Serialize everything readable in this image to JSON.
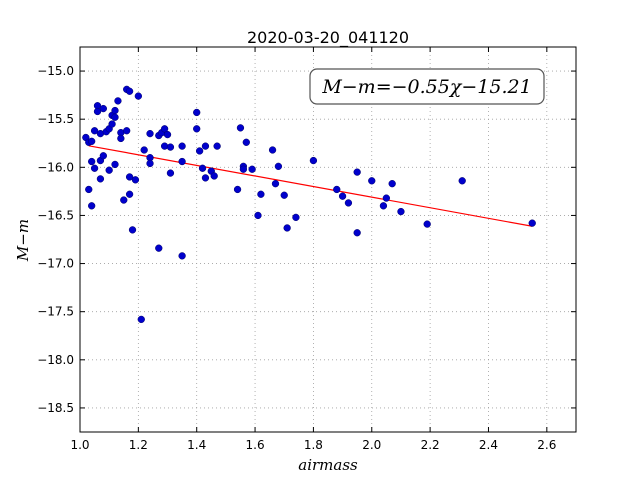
{
  "chart_data": {
    "type": "scatter",
    "title": "2020-03-20_041120",
    "xlabel": "airmass",
    "ylabel": "M−m",
    "xlim": [
      1.0,
      2.7
    ],
    "ylim": [
      -18.75,
      -14.75
    ],
    "y_inverted": true,
    "grid": true,
    "x_ticks": [
      "1.0",
      "1.2",
      "1.4",
      "1.6",
      "1.8",
      "2.0",
      "2.2",
      "2.4",
      "2.6"
    ],
    "y_ticks": [
      "−15.0",
      "−15.5",
      "−16.0",
      "−16.5",
      "−17.0",
      "−17.5",
      "−18.0",
      "−18.5"
    ],
    "annotation": "M−m=−0.55χ−15.21",
    "fit": {
      "slope": -0.55,
      "intercept": -15.21,
      "x_range": [
        1.03,
        2.55
      ],
      "color": "#ff0000"
    },
    "point_color": "#0000cc",
    "points": [
      [
        1.02,
        -15.69
      ],
      [
        1.03,
        -15.74
      ],
      [
        1.04,
        -15.73
      ],
      [
        1.03,
        -16.23
      ],
      [
        1.04,
        -16.4
      ],
      [
        1.05,
        -15.62
      ],
      [
        1.06,
        -15.36
      ],
      [
        1.06,
        -15.42
      ],
      [
        1.07,
        -15.65
      ],
      [
        1.08,
        -15.39
      ],
      [
        1.04,
        -15.94
      ],
      [
        1.05,
        -16.01
      ],
      [
        1.07,
        -15.93
      ],
      [
        1.07,
        -16.12
      ],
      [
        1.08,
        -15.88
      ],
      [
        1.09,
        -15.63
      ],
      [
        1.1,
        -15.6
      ],
      [
        1.1,
        -16.03
      ],
      [
        1.11,
        -15.46
      ],
      [
        1.11,
        -15.55
      ],
      [
        1.12,
        -15.41
      ],
      [
        1.12,
        -15.48
      ],
      [
        1.13,
        -15.31
      ],
      [
        1.12,
        -15.97
      ],
      [
        1.14,
        -15.64
      ],
      [
        1.14,
        -15.7
      ],
      [
        1.15,
        -16.34
      ],
      [
        1.16,
        -15.19
      ],
      [
        1.17,
        -15.21
      ],
      [
        1.16,
        -15.62
      ],
      [
        1.17,
        -16.1
      ],
      [
        1.17,
        -16.28
      ],
      [
        1.18,
        -16.65
      ],
      [
        1.19,
        -16.13
      ],
      [
        1.2,
        -15.26
      ],
      [
        1.21,
        -17.58
      ],
      [
        1.22,
        -15.82
      ],
      [
        1.24,
        -15.65
      ],
      [
        1.24,
        -15.9
      ],
      [
        1.24,
        -15.96
      ],
      [
        1.27,
        -15.67
      ],
      [
        1.28,
        -15.64
      ],
      [
        1.29,
        -15.6
      ],
      [
        1.29,
        -15.78
      ],
      [
        1.27,
        -16.84
      ],
      [
        1.3,
        -15.66
      ],
      [
        1.31,
        -15.79
      ],
      [
        1.31,
        -16.06
      ],
      [
        1.35,
        -15.78
      ],
      [
        1.35,
        -15.94
      ],
      [
        1.35,
        -16.92
      ],
      [
        1.4,
        -15.43
      ],
      [
        1.4,
        -15.6
      ],
      [
        1.41,
        -15.83
      ],
      [
        1.42,
        -16.01
      ],
      [
        1.43,
        -15.78
      ],
      [
        1.43,
        -16.11
      ],
      [
        1.45,
        -16.04
      ],
      [
        1.46,
        -16.09
      ],
      [
        1.47,
        -15.78
      ],
      [
        1.54,
        -16.23
      ],
      [
        1.55,
        -15.59
      ],
      [
        1.56,
        -15.99
      ],
      [
        1.56,
        -16.02
      ],
      [
        1.57,
        -15.74
      ],
      [
        1.59,
        -16.02
      ],
      [
        1.61,
        -16.5
      ],
      [
        1.62,
        -16.28
      ],
      [
        1.66,
        -15.82
      ],
      [
        1.67,
        -16.17
      ],
      [
        1.68,
        -15.99
      ],
      [
        1.7,
        -16.29
      ],
      [
        1.71,
        -16.63
      ],
      [
        1.74,
        -16.52
      ],
      [
        1.8,
        -15.93
      ],
      [
        1.88,
        -16.23
      ],
      [
        1.9,
        -16.3
      ],
      [
        1.92,
        -16.37
      ],
      [
        1.95,
        -16.05
      ],
      [
        1.95,
        -16.68
      ],
      [
        2.0,
        -16.14
      ],
      [
        2.04,
        -16.4
      ],
      [
        2.05,
        -16.32
      ],
      [
        2.07,
        -16.17
      ],
      [
        2.1,
        -16.46
      ],
      [
        2.19,
        -16.59
      ],
      [
        2.31,
        -16.14
      ],
      [
        2.55,
        -16.58
      ]
    ]
  }
}
